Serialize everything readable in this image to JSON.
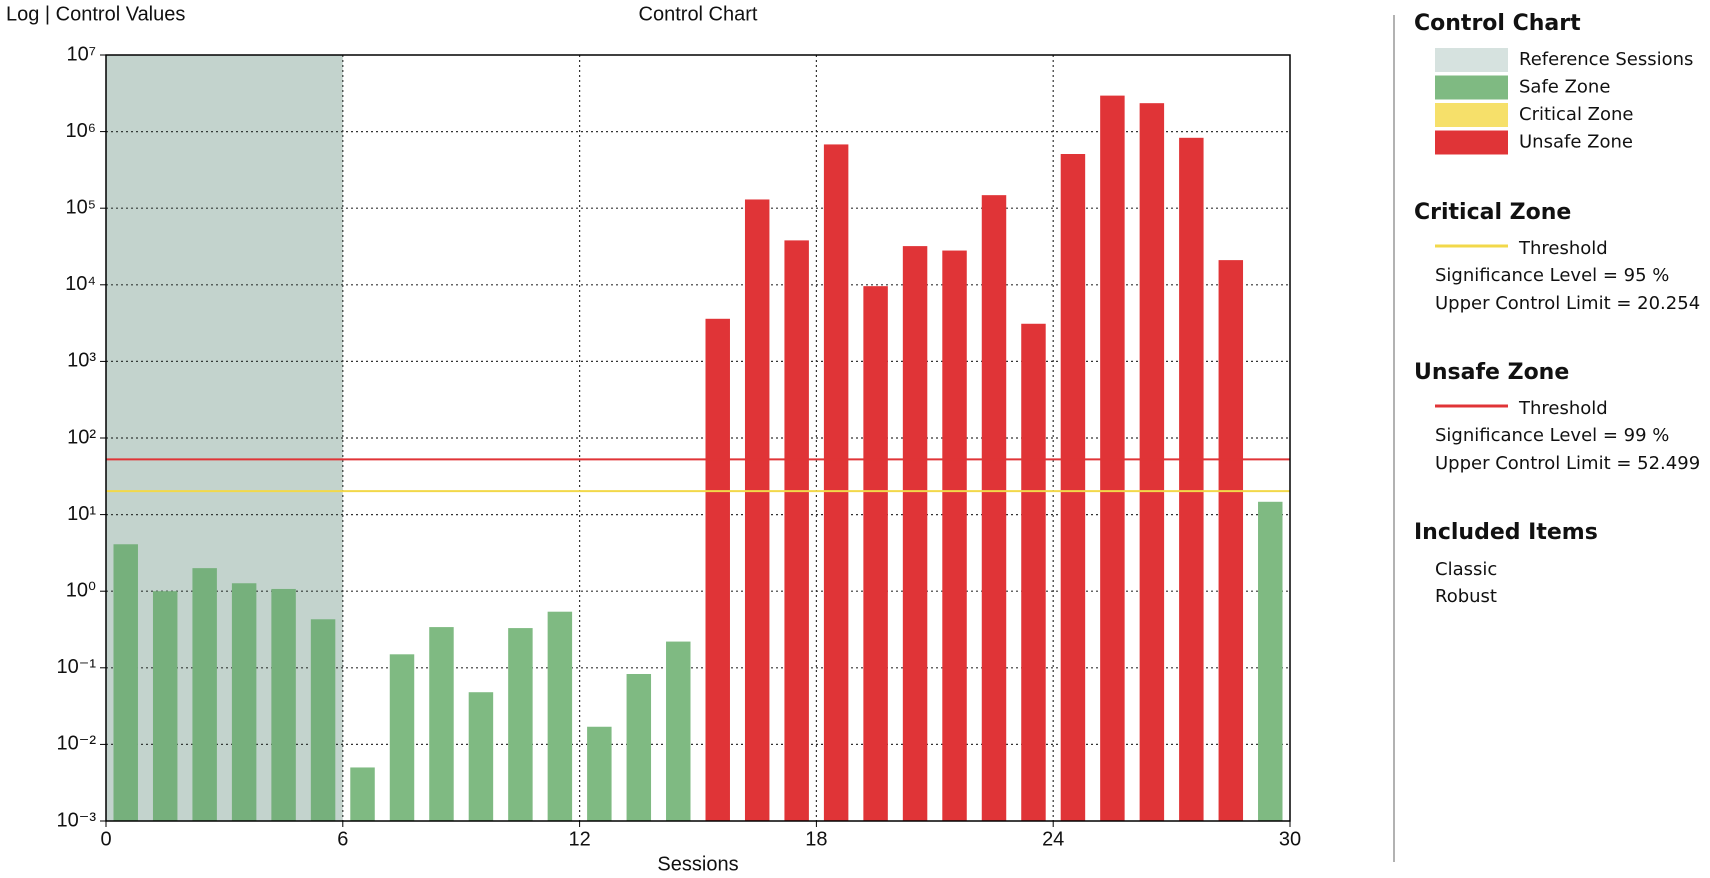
{
  "chart_data": {
    "type": "bar",
    "title": "Control Chart",
    "y_label": "Log | Control Values",
    "x_label": "Sessions",
    "log_scale": true,
    "grid": true,
    "xlim": [
      0,
      30
    ],
    "xticks": [
      0,
      6,
      12,
      18,
      24,
      30
    ],
    "ylim": [
      0.001,
      10000000
    ],
    "yticks": [
      {
        "value": 0.001,
        "label": "10⁻³"
      },
      {
        "value": 0.01,
        "label": "10⁻²"
      },
      {
        "value": 0.1,
        "label": "10⁻¹"
      },
      {
        "value": 1,
        "label": "10⁰"
      },
      {
        "value": 10,
        "label": "10¹"
      },
      {
        "value": 100,
        "label": "10²"
      },
      {
        "value": 1000,
        "label": "10³"
      },
      {
        "value": 10000,
        "label": "10⁴"
      },
      {
        "value": 100000,
        "label": "10⁵"
      },
      {
        "value": 1000000,
        "label": "10⁶"
      },
      {
        "value": 10000000,
        "label": "10⁷"
      }
    ],
    "x": [
      0.5,
      1.5,
      2.5,
      3.5,
      4.5,
      5.5,
      6.5,
      7.5,
      8.5,
      9.5,
      10.5,
      11.5,
      12.5,
      13.5,
      14.5,
      15.5,
      16.5,
      17.5,
      18.5,
      19.5,
      20.5,
      21.5,
      22.5,
      23.5,
      24.5,
      25.5,
      26.5,
      27.5,
      28.5,
      29.5
    ],
    "values": [
      4.1,
      1.0,
      2.0,
      1.27,
      1.07,
      0.43,
      0.005,
      0.15,
      0.34,
      0.048,
      0.33,
      0.54,
      0.017,
      0.083,
      0.22,
      3600,
      130000,
      38000,
      680000,
      9600,
      32000,
      28000,
      148000,
      3100,
      510000,
      2950000,
      2350000,
      830000,
      21000,
      14.7
    ],
    "legend_title": "Control Chart",
    "zones": [
      {
        "name": "Reference Sessions",
        "color": "#d6e2df",
        "range": [
          0,
          6
        ]
      },
      {
        "name": "Safe Zone",
        "color": "#7fba82"
      },
      {
        "name": "Critical Zone",
        "color": "#f6e06a"
      },
      {
        "name": "Unsafe Zone",
        "color": "#e03437"
      }
    ],
    "thresholds": [
      {
        "section": "Critical Zone",
        "label": "Threshold",
        "significance": "Significance Level = 95 %",
        "limit_label": "Upper Control Limit = 20.254",
        "value": 20.254,
        "color": "#f2d84a"
      },
      {
        "section": "Unsafe Zone",
        "label": "Threshold",
        "significance": "Significance Level = 99 %",
        "limit_label": "Upper Control Limit = 52.499",
        "value": 52.499,
        "color": "#e03437"
      }
    ],
    "included_title": "Included Items",
    "included": [
      "Classic",
      "Robust"
    ]
  }
}
